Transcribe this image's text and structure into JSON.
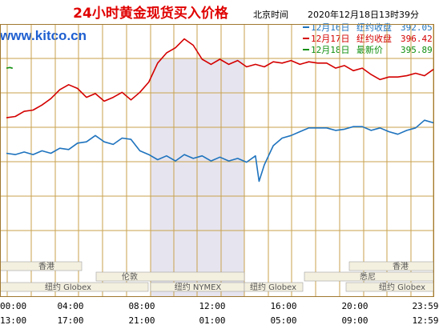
{
  "title": "24小时黄金现货买入价格",
  "header_time": {
    "label": "北京时间",
    "value": "2020年12月18日13时39分"
  },
  "logo": "www.kitco.cn",
  "legend": [
    {
      "date": "12月16日",
      "label": "纽约收盘",
      "value": "392.05",
      "color": "#1E73BE"
    },
    {
      "date": "12月17日",
      "label": "纽约收盘",
      "value": "396.42",
      "color": "#D40000"
    },
    {
      "date": "12月18日",
      "label": "最新价",
      "value": "395.89",
      "color": "#109010"
    }
  ],
  "sessions": [
    {
      "name": "香港",
      "row": 1
    },
    {
      "name": "香港",
      "row": 1
    },
    {
      "name": "伦敦",
      "row": 2
    },
    {
      "name": "悉尼",
      "row": 2
    },
    {
      "name": "纽约 Globex",
      "row": 3
    },
    {
      "name": "纽约 NYMEX",
      "row": 3
    },
    {
      "name": "纽约 Globex",
      "row": 3
    },
    {
      "name": "纽约 Globex",
      "row": 3
    }
  ],
  "x_ticks_row1": [
    "00:00",
    "04:00",
    "08:00",
    "12:00",
    "16:00",
    "20:00",
    "23:59"
  ],
  "x_ticks_row2": [
    "13:00",
    "17:00",
    "21:00",
    "01:00",
    "05:00",
    "09:00",
    "12:59"
  ],
  "colors": {
    "grid": "#C8A24E",
    "frame": "#A07830",
    "title": "#E00000",
    "logo": "#1E5FD0",
    "shade": "#E6E4EE",
    "session_bar": "#F4F0E0"
  },
  "chart_data": {
    "type": "line",
    "x_unit": "hour",
    "xlim": [
      0,
      24
    ],
    "ylim": [
      383,
      400
    ],
    "grid": true,
    "series": [
      {
        "name": "12月16日",
        "color": "#1E73BE",
        "x": [
          0,
          0.5,
          1,
          1.5,
          2,
          2.5,
          3,
          3.5,
          4,
          4.5,
          5,
          5.5,
          6,
          6.5,
          7,
          7.5,
          8,
          8.5,
          9,
          9.5,
          10,
          10.5,
          11,
          11.5,
          12,
          12.5,
          13,
          13.5,
          14,
          14.2,
          14.5,
          15,
          15.5,
          16,
          16.5,
          17,
          17.5,
          18,
          18.5,
          19,
          19.5,
          20,
          20.5,
          21,
          21.5,
          22,
          22.5,
          23,
          23.5,
          24
        ],
        "values": [
          389.2,
          389.1,
          389.3,
          389.1,
          389.4,
          389.2,
          389.6,
          389.5,
          390.0,
          390.1,
          390.6,
          390.1,
          389.9,
          390.4,
          390.3,
          389.4,
          389.1,
          388.7,
          389.0,
          388.6,
          389.1,
          388.8,
          389.0,
          388.6,
          388.9,
          388.6,
          388.8,
          388.5,
          389.0,
          387.0,
          388.3,
          389.8,
          390.4,
          390.6,
          390.9,
          391.2,
          391.2,
          391.2,
          391.0,
          391.1,
          391.3,
          391.3,
          391.0,
          391.2,
          390.9,
          390.7,
          391.0,
          391.2,
          391.8,
          391.6
        ]
      },
      {
        "name": "12月17日",
        "color": "#D40000",
        "x": [
          0,
          0.5,
          1,
          1.5,
          2,
          2.5,
          3,
          3.5,
          4,
          4.5,
          5,
          5.5,
          6,
          6.5,
          7,
          7.5,
          8,
          8.5,
          9,
          9.5,
          10,
          10.5,
          11,
          11.5,
          12,
          12.5,
          13,
          13.5,
          14,
          14.5,
          15,
          15.5,
          16,
          16.5,
          17,
          17.5,
          18,
          18.5,
          19,
          19.5,
          20,
          20.5,
          21,
          21.5,
          22,
          22.5,
          23,
          23.5,
          24
        ],
        "values": [
          392.0,
          392.1,
          392.5,
          392.6,
          393.0,
          393.5,
          394.2,
          394.6,
          394.3,
          393.6,
          393.9,
          393.3,
          393.6,
          394.0,
          393.4,
          394.0,
          394.8,
          396.3,
          397.1,
          397.5,
          398.2,
          397.7,
          396.6,
          396.2,
          396.6,
          396.2,
          396.5,
          396.0,
          396.2,
          396.0,
          396.4,
          396.3,
          396.5,
          396.2,
          396.4,
          396.3,
          396.3,
          395.9,
          396.1,
          395.7,
          395.9,
          395.4,
          395.0,
          395.2,
          395.2,
          395.3,
          395.5,
          395.3,
          395.8
        ]
      },
      {
        "name": "12月18日",
        "color": "#109010",
        "x": [
          0,
          0.2,
          0.35
        ],
        "values": [
          395.9,
          395.95,
          395.89
        ]
      }
    ]
  }
}
